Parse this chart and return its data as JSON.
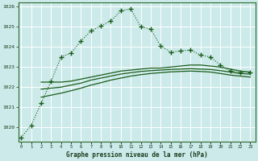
{
  "title": "Graphe pression niveau de la mer (hPa)",
  "background_color": "#cceaea",
  "line_color": "#1a5c1a",
  "x_values": [
    0,
    1,
    2,
    3,
    4,
    5,
    6,
    7,
    8,
    9,
    10,
    11,
    12,
    13,
    14,
    15,
    16,
    17,
    18,
    19,
    20,
    21,
    22,
    23
  ],
  "main_line": [
    1019.5,
    1020.1,
    1021.2,
    1022.3,
    1023.5,
    1023.7,
    1024.3,
    1024.8,
    1025.05,
    1025.3,
    1025.8,
    1025.9,
    1025.0,
    1024.9,
    1024.05,
    1023.75,
    1023.8,
    1023.85,
    1023.6,
    1023.5,
    1023.1,
    1022.8,
    1022.75,
    1022.75
  ],
  "smooth_line1_x": [
    2,
    3,
    4,
    5,
    6,
    7,
    8,
    9,
    10,
    11,
    12,
    13,
    14,
    15,
    16,
    17,
    18,
    19,
    20,
    21,
    22,
    23
  ],
  "smooth_line1_y": [
    1022.25,
    1022.25,
    1022.25,
    1022.3,
    1022.4,
    1022.5,
    1022.6,
    1022.7,
    1022.8,
    1022.85,
    1022.9,
    1022.95,
    1022.95,
    1023.0,
    1023.05,
    1023.1,
    1023.1,
    1023.05,
    1023.0,
    1022.9,
    1022.8,
    1022.75
  ],
  "smooth_line2_x": [
    2,
    3,
    4,
    5,
    6,
    7,
    8,
    9,
    10,
    11,
    12,
    13,
    14,
    15,
    16,
    17,
    18,
    19,
    20,
    21,
    22,
    23
  ],
  "smooth_line2_y": [
    1021.9,
    1021.95,
    1022.0,
    1022.1,
    1022.2,
    1022.35,
    1022.45,
    1022.55,
    1022.65,
    1022.72,
    1022.78,
    1022.82,
    1022.85,
    1022.88,
    1022.9,
    1022.92,
    1022.9,
    1022.88,
    1022.82,
    1022.75,
    1022.68,
    1022.65
  ],
  "smooth_line3_x": [
    2,
    3,
    4,
    5,
    6,
    7,
    8,
    9,
    10,
    11,
    12,
    13,
    14,
    15,
    16,
    17,
    18,
    19,
    20,
    21,
    22,
    23
  ],
  "smooth_line3_y": [
    1021.5,
    1021.6,
    1021.7,
    1021.82,
    1021.95,
    1022.1,
    1022.22,
    1022.35,
    1022.45,
    1022.55,
    1022.62,
    1022.68,
    1022.72,
    1022.76,
    1022.78,
    1022.8,
    1022.78,
    1022.75,
    1022.68,
    1022.6,
    1022.55,
    1022.5
  ],
  "ylim": [
    1019.3,
    1026.2
  ],
  "yticks": [
    1020,
    1021,
    1022,
    1023,
    1024,
    1025,
    1026
  ],
  "xlim": [
    -0.3,
    23.5
  ]
}
